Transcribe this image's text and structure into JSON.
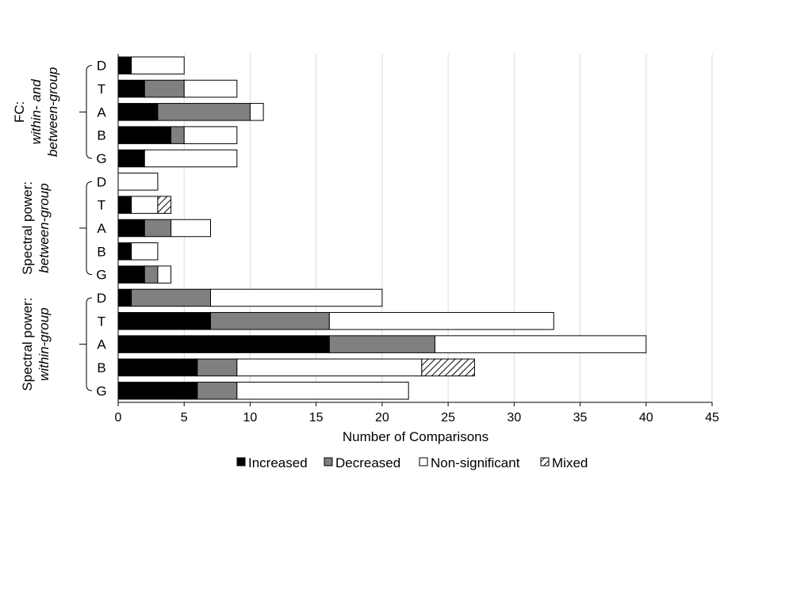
{
  "chart_data": {
    "type": "bar",
    "orientation": "horizontal",
    "stacked": true,
    "xlabel": "Number of Comparisons",
    "xlim": [
      0,
      45
    ],
    "xticks": [
      "0",
      "5",
      "10",
      "15",
      "20",
      "25",
      "30",
      "35",
      "40",
      "45"
    ],
    "grid": "vertical",
    "legend_position": "bottom",
    "series": [
      {
        "name": "Increased",
        "color": "#000000",
        "pattern": "solid"
      },
      {
        "name": "Decreased",
        "color": "#808080",
        "pattern": "solid"
      },
      {
        "name": "Non-significant",
        "color": "#ffffff",
        "pattern": "solid"
      },
      {
        "name": "Mixed",
        "color": "#ffffff",
        "pattern": "diagonal-hatch"
      }
    ],
    "groups": [
      {
        "label_line1": "FC:",
        "label_line2": "within- and",
        "label_line3": "between-group",
        "categories": [
          "D",
          "T",
          "A",
          "B",
          "G"
        ],
        "values": [
          [
            1,
            0,
            4,
            0
          ],
          [
            2,
            3,
            4,
            0
          ],
          [
            3,
            7,
            1,
            0
          ],
          [
            4,
            1,
            4,
            0
          ],
          [
            2,
            0,
            7,
            0
          ]
        ]
      },
      {
        "label_line1": "Spectral power:",
        "label_line2": "between-group",
        "label_line3": "",
        "categories": [
          "D",
          "T",
          "A",
          "B",
          "G"
        ],
        "values": [
          [
            0,
            0,
            3,
            0
          ],
          [
            1,
            0,
            2,
            1
          ],
          [
            2,
            2,
            3,
            0
          ],
          [
            1,
            0,
            2,
            0
          ],
          [
            2,
            1,
            1,
            0
          ]
        ]
      },
      {
        "label_line1": "Spectral power:",
        "label_line2": "within-group",
        "label_line3": "",
        "categories": [
          "D",
          "T",
          "A",
          "B",
          "G"
        ],
        "values": [
          [
            1,
            6,
            13,
            0
          ],
          [
            7,
            9,
            17,
            0
          ],
          [
            16,
            8,
            16,
            0
          ],
          [
            6,
            3,
            14,
            4
          ],
          [
            6,
            3,
            13,
            0
          ]
        ]
      }
    ]
  }
}
